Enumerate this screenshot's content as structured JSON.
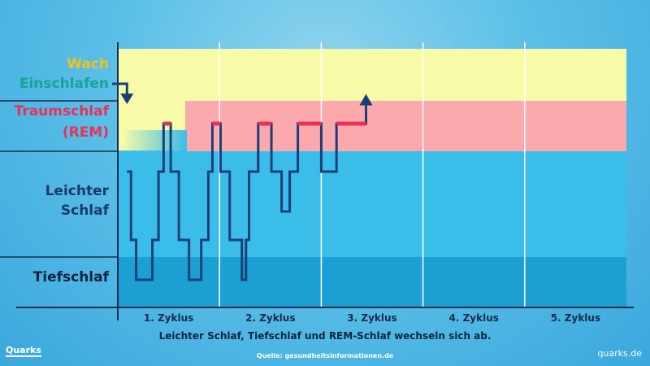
{
  "chart_data": {
    "type": "line",
    "title": "",
    "xlabel": "",
    "ylabel": "",
    "stages": [
      {
        "key": "wach",
        "lines": [
          "Wach"
        ],
        "color": "#f7fba8",
        "text_color": "#f2c21a"
      },
      {
        "key": "rem",
        "lines": [
          "Traumschlaf",
          "(REM)"
        ],
        "color": "#fca9ad",
        "text_color": "#e8325a"
      },
      {
        "key": "leicht",
        "lines": [
          "Leichter",
          "Schlaf"
        ],
        "color": "#3bbdea",
        "text_color": "#1a3a6b"
      },
      {
        "key": "tief",
        "lines": [
          "Tiefschlaf"
        ],
        "color": "#1c9fd2",
        "text_color": "#13233f"
      }
    ],
    "einschlafen_label": "Einschlafen",
    "einschlafen_color": "#17a397",
    "x_categories": [
      "1. Zyklus",
      "2. Zyklus",
      "3. Zyklus",
      "4. Zyklus",
      "5. Zyklus"
    ],
    "xlim": [
      0,
      5
    ],
    "y_levels": {
      "einschlafen": 4.0,
      "rem": 3.0,
      "leicht_1": 2.2,
      "leicht_2": 1.5,
      "leicht_3": 1.0,
      "tief": 0.3
    },
    "hypnogram_points": [
      [
        0.09,
        3.55
      ],
      [
        0.09,
        2.2
      ],
      [
        0.13,
        2.2
      ],
      [
        0.13,
        1.0
      ],
      [
        0.18,
        1.0
      ],
      [
        0.18,
        0.3
      ],
      [
        0.34,
        0.3
      ],
      [
        0.34,
        1.0
      ],
      [
        0.4,
        1.0
      ],
      [
        0.4,
        2.2
      ],
      [
        0.45,
        2.2
      ],
      [
        0.45,
        3.0
      ],
      [
        0.52,
        3.0
      ],
      [
        0.52,
        2.2
      ],
      [
        0.6,
        2.2
      ],
      [
        0.6,
        1.0
      ],
      [
        0.7,
        1.0
      ],
      [
        0.7,
        0.3
      ],
      [
        0.82,
        0.3
      ],
      [
        0.82,
        1.0
      ],
      [
        0.89,
        1.0
      ],
      [
        0.89,
        2.2
      ],
      [
        0.93,
        2.2
      ],
      [
        0.93,
        3.0
      ],
      [
        1.01,
        3.0
      ],
      [
        1.01,
        2.2
      ],
      [
        1.1,
        2.2
      ],
      [
        1.1,
        1.0
      ],
      [
        1.22,
        1.0
      ],
      [
        1.22,
        0.3
      ],
      [
        1.26,
        0.3
      ],
      [
        1.26,
        1.0
      ],
      [
        1.29,
        1.0
      ],
      [
        1.29,
        2.2
      ],
      [
        1.38,
        2.2
      ],
      [
        1.38,
        3.0
      ],
      [
        1.51,
        3.0
      ],
      [
        1.51,
        2.2
      ],
      [
        1.61,
        2.2
      ],
      [
        1.61,
        1.5
      ],
      [
        1.69,
        1.5
      ],
      [
        1.69,
        2.2
      ],
      [
        1.77,
        2.2
      ],
      [
        1.77,
        3.0
      ],
      [
        2.0,
        3.0
      ],
      [
        2.0,
        2.2
      ],
      [
        2.15,
        2.2
      ],
      [
        2.15,
        3.0
      ],
      [
        2.44,
        3.0
      ],
      [
        2.44,
        3.5
      ]
    ],
    "rem_segments": [
      [
        0.45,
        0.52
      ],
      [
        0.93,
        1.01
      ],
      [
        1.38,
        1.51
      ],
      [
        1.77,
        2.0
      ],
      [
        2.15,
        2.44
      ]
    ],
    "caption": "Leichter Schlaf, Tiefschlaf und REM-Schlaf wechseln sich ab.",
    "source": "Quelle: gesundheitsinformationen.de"
  },
  "brand": {
    "logo": "Quarks",
    "watermark": "quarks.de"
  },
  "colors": {
    "line": "#1a3f77",
    "rem_line": "#e8325a",
    "axis": "#1a2b4a",
    "divider": "#ffffff"
  }
}
